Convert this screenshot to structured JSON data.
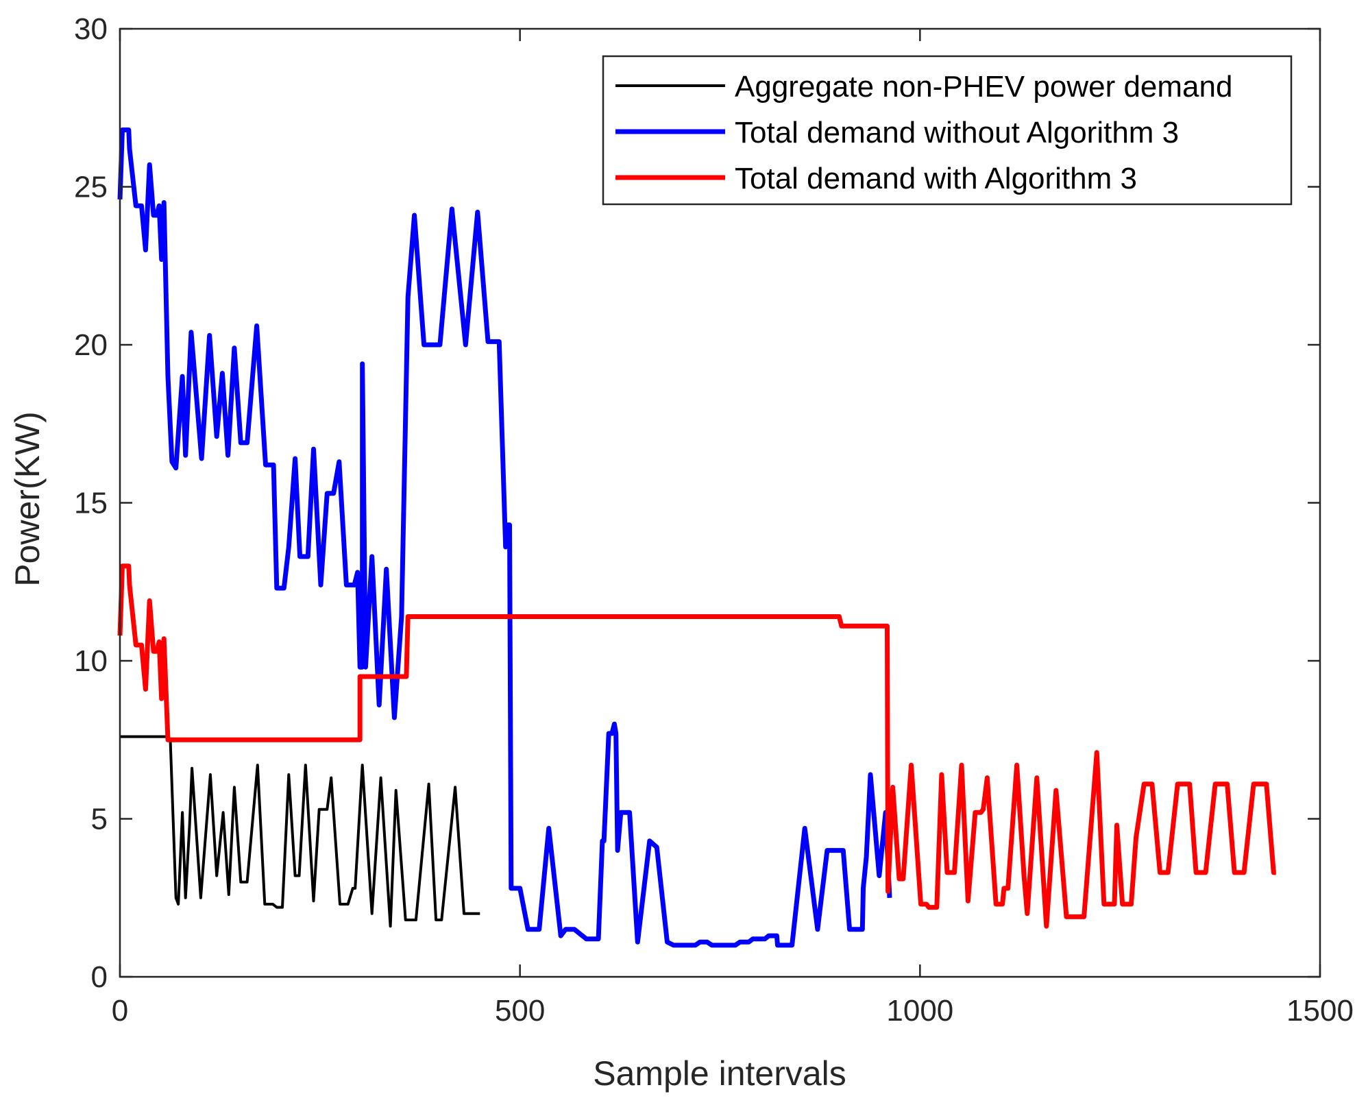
{
  "chart_data": {
    "type": "line",
    "title": "",
    "xlabel": "Sample intervals",
    "ylabel": "Power(KW)",
    "xlim": [
      0,
      1500
    ],
    "ylim": [
      0,
      30
    ],
    "xticks": [
      0,
      500,
      1000,
      1500
    ],
    "yticks": [
      0,
      5,
      10,
      15,
      20,
      25,
      30
    ],
    "grid": false,
    "legend_position": "top-right",
    "series": [
      {
        "name": "Aggregate non-PHEV power demand",
        "color": "#000000",
        "points": [
          [
            0,
            7.6
          ],
          [
            60,
            7.6
          ],
          [
            63,
            7.5
          ],
          [
            70,
            2.5
          ],
          [
            73,
            2.3
          ],
          [
            78,
            5.2
          ],
          [
            82,
            2.5
          ],
          [
            87,
            4.8
          ],
          [
            90,
            6.6
          ],
          [
            101,
            2.5
          ],
          [
            113,
            6.4
          ],
          [
            121,
            3.2
          ],
          [
            129,
            5.2
          ],
          [
            136,
            2.6
          ],
          [
            143,
            6.0
          ],
          [
            151,
            3.0
          ],
          [
            159,
            3.0
          ],
          [
            172,
            6.7
          ],
          [
            181,
            2.3
          ],
          [
            186,
            2.3
          ],
          [
            191,
            2.3
          ],
          [
            196,
            2.2
          ],
          [
            203,
            2.2
          ],
          [
            211,
            6.4
          ],
          [
            219,
            3.2
          ],
          [
            224,
            3.2
          ],
          [
            232,
            6.7
          ],
          [
            242,
            2.4
          ],
          [
            249,
            5.3
          ],
          [
            259,
            5.3
          ],
          [
            264,
            6.3
          ],
          [
            275,
            2.3
          ],
          [
            285,
            2.3
          ],
          [
            291,
            2.8
          ],
          [
            294,
            2.8
          ],
          [
            303,
            6.7
          ],
          [
            315,
            2.0
          ],
          [
            326,
            6.3
          ],
          [
            338,
            1.6
          ],
          [
            345,
            5.9
          ],
          [
            357,
            1.8
          ],
          [
            370,
            1.8
          ],
          [
            386,
            6.1
          ],
          [
            395,
            1.8
          ],
          [
            402,
            1.8
          ],
          [
            419,
            6.0
          ],
          [
            430,
            2.0
          ],
          [
            450,
            2.0
          ]
        ]
      },
      {
        "name": "Total demand without Algorithm 3",
        "color": "#0000ff",
        "points": [
          [
            0,
            24.6
          ],
          [
            3,
            26.8
          ],
          [
            11,
            26.8
          ],
          [
            12,
            26.2
          ],
          [
            20,
            24.4
          ],
          [
            27,
            24.4
          ],
          [
            32,
            23.0
          ],
          [
            37,
            25.7
          ],
          [
            42,
            24.1
          ],
          [
            46,
            24.1
          ],
          [
            49,
            24.4
          ],
          [
            52,
            22.7
          ],
          [
            55,
            24.5
          ],
          [
            60,
            19.0
          ],
          [
            65,
            16.3
          ],
          [
            70,
            16.1
          ],
          [
            78,
            19.0
          ],
          [
            82,
            16.5
          ],
          [
            89,
            20.4
          ],
          [
            102,
            16.4
          ],
          [
            112,
            20.3
          ],
          [
            121,
            17.1
          ],
          [
            128,
            19.1
          ],
          [
            135,
            16.5
          ],
          [
            143,
            19.9
          ],
          [
            151,
            16.9
          ],
          [
            159,
            16.9
          ],
          [
            171,
            20.6
          ],
          [
            182,
            16.2
          ],
          [
            192,
            16.2
          ],
          [
            196,
            12.3
          ],
          [
            200,
            12.3
          ],
          [
            205,
            12.3
          ],
          [
            211,
            13.6
          ],
          [
            219,
            16.4
          ],
          [
            225,
            13.3
          ],
          [
            235,
            13.3
          ],
          [
            242,
            16.7
          ],
          [
            251,
            12.4
          ],
          [
            259,
            15.3
          ],
          [
            267,
            15.3
          ],
          [
            274,
            16.3
          ],
          [
            283,
            12.4
          ],
          [
            293,
            12.4
          ],
          [
            297,
            12.8
          ],
          [
            300,
            9.8
          ],
          [
            303,
            9.8
          ],
          [
            303,
            19.4
          ],
          [
            307,
            9.8
          ],
          [
            315,
            13.3
          ],
          [
            324,
            8.6
          ],
          [
            333,
            12.9
          ],
          [
            343,
            8.2
          ],
          [
            352,
            11.4
          ],
          [
            360,
            21.5
          ],
          [
            368,
            24.1
          ],
          [
            380,
            20.0
          ],
          [
            400,
            20.0
          ],
          [
            415,
            24.3
          ],
          [
            432,
            20.0
          ],
          [
            447,
            24.2
          ],
          [
            460,
            20.1
          ],
          [
            474,
            20.1
          ],
          [
            482,
            13.6
          ],
          [
            484,
            14.3
          ],
          [
            487,
            14.3
          ],
          [
            489,
            2.8
          ],
          [
            500,
            2.8
          ],
          [
            510,
            1.5
          ],
          [
            524,
            1.5
          ],
          [
            536,
            4.7
          ],
          [
            551,
            1.3
          ],
          [
            557,
            1.5
          ],
          [
            568,
            1.5
          ],
          [
            583,
            1.2
          ],
          [
            590,
            1.2
          ],
          [
            598,
            1.2
          ],
          [
            603,
            4.3
          ],
          [
            605,
            4.3
          ],
          [
            611,
            7.7
          ],
          [
            615,
            7.7
          ],
          [
            618,
            8.0
          ],
          [
            620,
            7.7
          ],
          [
            622,
            4.0
          ],
          [
            626,
            5.2
          ],
          [
            637,
            5.2
          ],
          [
            647,
            1.1
          ],
          [
            662,
            4.3
          ],
          [
            671,
            4.1
          ],
          [
            684,
            1.1
          ],
          [
            692,
            1.0
          ],
          [
            700,
            1.0
          ],
          [
            710,
            1.0
          ],
          [
            719,
            1.0
          ],
          [
            725,
            1.1
          ],
          [
            734,
            1.1
          ],
          [
            740,
            1.0
          ],
          [
            746,
            1.0
          ],
          [
            751,
            1.0
          ],
          [
            756,
            1.0
          ],
          [
            762,
            1.0
          ],
          [
            769,
            1.0
          ],
          [
            775,
            1.1
          ],
          [
            786,
            1.1
          ],
          [
            791,
            1.2
          ],
          [
            798,
            1.2
          ],
          [
            801,
            1.2
          ],
          [
            806,
            1.2
          ],
          [
            811,
            1.3
          ],
          [
            815,
            1.3
          ],
          [
            818,
            1.3
          ],
          [
            821,
            1.3
          ],
          [
            822,
            1.0
          ],
          [
            840,
            1.0
          ],
          [
            856,
            4.7
          ],
          [
            872,
            1.5
          ],
          [
            884,
            4.0
          ],
          [
            892,
            4.0
          ],
          [
            904,
            4.0
          ],
          [
            912,
            1.5
          ],
          [
            928,
            1.5
          ],
          [
            929,
            2.8
          ],
          [
            933,
            3.8
          ],
          [
            938,
            6.4
          ],
          [
            949,
            3.2
          ],
          [
            957,
            5.2
          ],
          [
            962,
            2.5
          ]
        ]
      },
      {
        "name": "Total demand with Algorithm 3",
        "color": "#ff0000",
        "points": [
          [
            0,
            10.8
          ],
          [
            3,
            13.0
          ],
          [
            11,
            13.0
          ],
          [
            12,
            12.4
          ],
          [
            20,
            10.5
          ],
          [
            27,
            10.5
          ],
          [
            32,
            9.1
          ],
          [
            37,
            11.9
          ],
          [
            42,
            10.3
          ],
          [
            46,
            10.3
          ],
          [
            49,
            10.6
          ],
          [
            52,
            8.8
          ],
          [
            55,
            10.7
          ],
          [
            60,
            7.5
          ],
          [
            300,
            7.5
          ],
          [
            300,
            9.5
          ],
          [
            358,
            9.5
          ],
          [
            360,
            11.4
          ],
          [
            899,
            11.4
          ],
          [
            902,
            11.1
          ],
          [
            959,
            11.1
          ],
          [
            960,
            2.7
          ],
          [
            966,
            6.0
          ],
          [
            974,
            3.1
          ],
          [
            979,
            3.1
          ],
          [
            989,
            6.7
          ],
          [
            1001,
            2.3
          ],
          [
            1008,
            2.3
          ],
          [
            1011,
            2.2
          ],
          [
            1021,
            2.2
          ],
          [
            1027,
            6.4
          ],
          [
            1034,
            3.3
          ],
          [
            1043,
            3.3
          ],
          [
            1052,
            6.7
          ],
          [
            1060,
            2.4
          ],
          [
            1069,
            5.2
          ],
          [
            1076,
            5.2
          ],
          [
            1079,
            5.3
          ],
          [
            1084,
            6.3
          ],
          [
            1095,
            2.3
          ],
          [
            1103,
            2.3
          ],
          [
            1105,
            2.8
          ],
          [
            1110,
            2.8
          ],
          [
            1121,
            6.7
          ],
          [
            1130,
            3.2
          ],
          [
            1134,
            2.0
          ],
          [
            1146,
            6.3
          ],
          [
            1158,
            1.6
          ],
          [
            1170,
            5.9
          ],
          [
            1183,
            1.9
          ],
          [
            1195,
            1.9
          ],
          [
            1205,
            1.9
          ],
          [
            1221,
            7.1
          ],
          [
            1230,
            2.3
          ],
          [
            1236,
            2.3
          ],
          [
            1243,
            2.3
          ],
          [
            1246,
            4.8
          ],
          [
            1253,
            2.3
          ],
          [
            1264,
            2.3
          ],
          [
            1270,
            4.4
          ],
          [
            1280,
            6.1
          ],
          [
            1290,
            6.1
          ],
          [
            1300,
            3.3
          ],
          [
            1310,
            3.3
          ],
          [
            1322,
            6.1
          ],
          [
            1337,
            6.1
          ],
          [
            1345,
            3.3
          ],
          [
            1357,
            3.3
          ],
          [
            1369,
            6.1
          ],
          [
            1384,
            6.1
          ],
          [
            1393,
            3.3
          ],
          [
            1405,
            3.3
          ],
          [
            1417,
            6.1
          ],
          [
            1433,
            6.1
          ],
          [
            1442,
            3.3
          ],
          [
            1445,
            3.3
          ]
        ]
      }
    ]
  }
}
